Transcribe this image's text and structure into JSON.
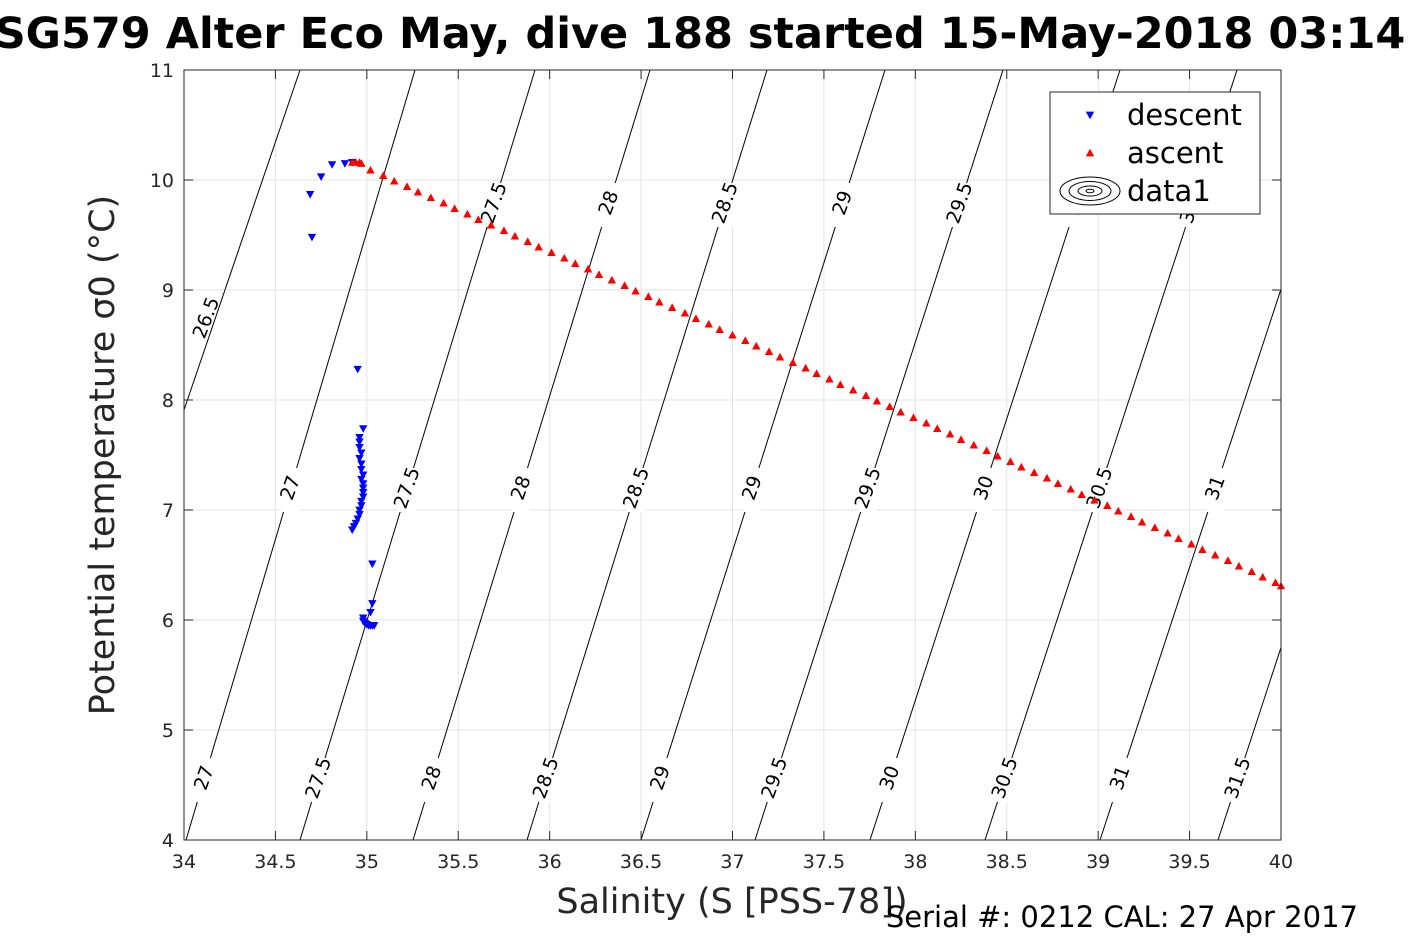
{
  "chart_data": {
    "type": "scatter",
    "title": "SG579 Alter Eco May, dive 188 started 15-May-2018 03:14",
    "xlabel": "Salinity (S [PSS-78])",
    "ylabel": "Potential temperature σ0 (°C)",
    "xlim": [
      34,
      40
    ],
    "ylim": [
      4,
      11
    ],
    "x_ticks": [
      34,
      34.5,
      35,
      35.5,
      36,
      36.5,
      37,
      37.5,
      38,
      38.5,
      39,
      39.5,
      40
    ],
    "y_ticks": [
      4,
      5,
      6,
      7,
      8,
      9,
      10,
      11
    ],
    "x_tick_labels": [
      "34",
      "34.5",
      "35",
      "35.5",
      "36",
      "36.5",
      "37",
      "37.5",
      "38",
      "38.5",
      "39",
      "39.5",
      "40"
    ],
    "y_tick_labels": [
      "4",
      "5",
      "6",
      "7",
      "8",
      "9",
      "10",
      "11"
    ],
    "grid": true,
    "legend": {
      "placement": "top-right",
      "entries": [
        "descent",
        "ascent",
        "data1"
      ]
    },
    "series": [
      {
        "name": "descent",
        "marker": "triangle-down",
        "color": "#0000ff",
        "points": [
          [
            34.7,
            9.48
          ],
          [
            34.69,
            9.87
          ],
          [
            34.75,
            10.03
          ],
          [
            34.81,
            10.14
          ],
          [
            34.88,
            10.15
          ],
          [
            34.92,
            10.16
          ],
          [
            34.95,
            8.28
          ],
          [
            34.98,
            7.74
          ],
          [
            34.96,
            7.66
          ],
          [
            34.96,
            7.62
          ],
          [
            34.96,
            7.57
          ],
          [
            34.97,
            7.52
          ],
          [
            34.96,
            7.47
          ],
          [
            34.97,
            7.42
          ],
          [
            34.97,
            7.37
          ],
          [
            34.98,
            7.32
          ],
          [
            34.97,
            7.28
          ],
          [
            34.98,
            7.24
          ],
          [
            34.98,
            7.2
          ],
          [
            34.98,
            7.16
          ],
          [
            34.98,
            7.12
          ],
          [
            34.97,
            7.08
          ],
          [
            34.97,
            7.04
          ],
          [
            34.96,
            7.0
          ],
          [
            34.96,
            6.96
          ],
          [
            34.95,
            6.92
          ],
          [
            34.94,
            6.88
          ],
          [
            34.93,
            6.85
          ],
          [
            34.92,
            6.82
          ],
          [
            35.03,
            6.51
          ],
          [
            35.03,
            6.15
          ],
          [
            35.02,
            6.07
          ],
          [
            34.98,
            6.02
          ],
          [
            34.98,
            5.99
          ],
          [
            34.99,
            5.97
          ],
          [
            35.0,
            5.96
          ],
          [
            35.01,
            5.95
          ],
          [
            35.02,
            5.95
          ],
          [
            35.03,
            5.95
          ],
          [
            35.04,
            5.95
          ]
        ]
      },
      {
        "name": "ascent",
        "marker": "triangle-up",
        "color": "#ff0000",
        "points": [
          [
            34.92,
            10.16
          ],
          [
            34.94,
            10.16
          ],
          [
            34.96,
            10.16
          ],
          [
            34.97,
            10.15
          ],
          [
            35.02,
            10.09
          ],
          [
            35.09,
            10.04
          ],
          [
            35.15,
            9.99
          ],
          [
            35.22,
            9.94
          ],
          [
            35.28,
            9.89
          ],
          [
            35.35,
            9.84
          ],
          [
            35.42,
            9.79
          ],
          [
            35.48,
            9.74
          ],
          [
            35.55,
            9.69
          ],
          [
            35.61,
            9.64
          ],
          [
            35.68,
            9.59
          ],
          [
            35.75,
            9.54
          ],
          [
            35.81,
            9.49
          ],
          [
            35.88,
            9.44
          ],
          [
            35.94,
            9.39
          ],
          [
            36.01,
            9.34
          ],
          [
            36.08,
            9.29
          ],
          [
            36.14,
            9.24
          ],
          [
            36.21,
            9.19
          ],
          [
            36.27,
            9.14
          ],
          [
            36.34,
            9.09
          ],
          [
            36.41,
            9.04
          ],
          [
            36.47,
            8.99
          ],
          [
            36.54,
            8.94
          ],
          [
            36.6,
            8.89
          ],
          [
            36.67,
            8.84
          ],
          [
            36.74,
            8.79
          ],
          [
            36.8,
            8.74
          ],
          [
            36.87,
            8.69
          ],
          [
            36.93,
            8.64
          ],
          [
            37.0,
            8.59
          ],
          [
            37.07,
            8.54
          ],
          [
            37.13,
            8.49
          ],
          [
            37.2,
            8.44
          ],
          [
            37.26,
            8.39
          ],
          [
            37.33,
            8.34
          ],
          [
            37.4,
            8.29
          ],
          [
            37.46,
            8.24
          ],
          [
            37.53,
            8.19
          ],
          [
            37.59,
            8.14
          ],
          [
            37.66,
            8.09
          ],
          [
            37.73,
            8.04
          ],
          [
            37.79,
            7.99
          ],
          [
            37.86,
            7.94
          ],
          [
            37.92,
            7.89
          ],
          [
            37.99,
            7.84
          ],
          [
            38.06,
            7.79
          ],
          [
            38.12,
            7.74
          ],
          [
            38.19,
            7.69
          ],
          [
            38.25,
            7.64
          ],
          [
            38.32,
            7.59
          ],
          [
            38.39,
            7.54
          ],
          [
            38.45,
            7.49
          ],
          [
            38.52,
            7.44
          ],
          [
            38.58,
            7.39
          ],
          [
            38.65,
            7.34
          ],
          [
            38.72,
            7.29
          ],
          [
            38.78,
            7.24
          ],
          [
            38.85,
            7.19
          ],
          [
            38.91,
            7.14
          ],
          [
            38.98,
            7.09
          ],
          [
            39.05,
            7.04
          ],
          [
            39.11,
            6.99
          ],
          [
            39.18,
            6.94
          ],
          [
            39.24,
            6.89
          ],
          [
            39.31,
            6.84
          ],
          [
            39.38,
            6.79
          ],
          [
            39.44,
            6.74
          ],
          [
            39.51,
            6.69
          ],
          [
            39.57,
            6.64
          ],
          [
            39.64,
            6.59
          ],
          [
            39.71,
            6.54
          ],
          [
            39.77,
            6.49
          ],
          [
            39.84,
            6.44
          ],
          [
            39.9,
            6.39
          ],
          [
            39.97,
            6.34
          ],
          [
            40.0,
            6.31
          ]
        ]
      },
      {
        "name": "data1",
        "marker": "contour",
        "color": "#000000",
        "isopycnals": [
          "26.5",
          "27",
          "27.5",
          "28",
          "28.5",
          "29",
          "29.5",
          "30",
          "30.5",
          "31",
          "31.5"
        ]
      }
    ]
  },
  "footer": {
    "serial": "Serial #: 0212  CAL: 27 Apr 2017"
  }
}
